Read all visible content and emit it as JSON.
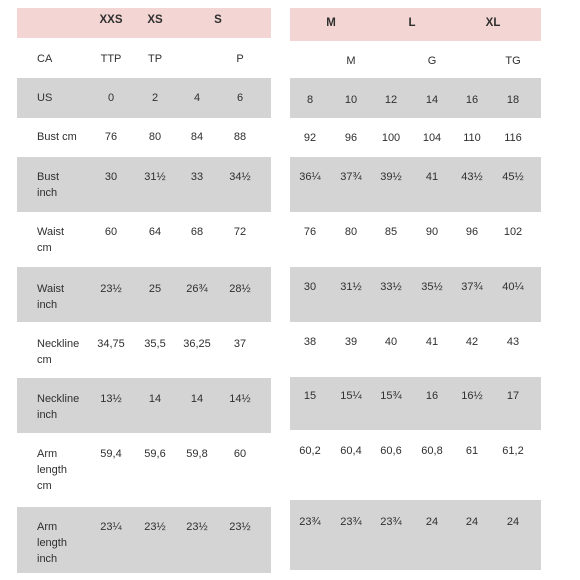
{
  "colors": {
    "header_bg": "#f3d6d3",
    "band_bg": "#d4d4d4",
    "text": "#2f2f2f"
  },
  "left": {
    "sizes": [
      "XXS",
      "XS",
      "S"
    ],
    "ca_label": "CA",
    "ca": [
      "TTP",
      "TP",
      "P"
    ],
    "rows": [
      {
        "label": [
          "US"
        ],
        "values": [
          "0",
          "2",
          "4",
          "6"
        ]
      },
      {
        "label": [
          "Bust cm"
        ],
        "values": [
          "76",
          "80",
          "84",
          "88"
        ]
      },
      {
        "label": [
          "Bust",
          "inch"
        ],
        "values": [
          "30",
          "31½",
          "33",
          "34½"
        ]
      },
      {
        "label": [
          "Waist",
          "cm"
        ],
        "values": [
          "60",
          "64",
          "68",
          "72"
        ]
      },
      {
        "label": [
          "Waist",
          "inch"
        ],
        "values": [
          "23½",
          "25",
          "26¾",
          "28½"
        ]
      },
      {
        "label": [
          "Neckline",
          "cm"
        ],
        "values": [
          "34,75",
          "35,5",
          "36,25",
          "37"
        ]
      },
      {
        "label": [
          "Neckline",
          "inch"
        ],
        "values": [
          "13½",
          "14",
          "14",
          "14½"
        ]
      },
      {
        "label": [
          "Arm",
          "length",
          "cm"
        ],
        "values": [
          "59,4",
          "59,6",
          "59,8",
          "60"
        ]
      },
      {
        "label": [
          "Arm",
          "length",
          "inch"
        ],
        "values": [
          "23¼",
          "23½",
          "23½",
          "23½"
        ]
      }
    ]
  },
  "right": {
    "sizes": [
      "M",
      "L",
      "XL"
    ],
    "ca": [
      "M",
      "G",
      "TG"
    ],
    "rows": [
      [
        "8",
        "10",
        "12",
        "14",
        "16",
        "18"
      ],
      [
        "92",
        "96",
        "100",
        "104",
        "110",
        "116"
      ],
      [
        "36¼",
        "37¾",
        "39½",
        "41",
        "43½",
        "45½"
      ],
      [
        "76",
        "80",
        "85",
        "90",
        "96",
        "102"
      ],
      [
        "30",
        "31½",
        "33½",
        "35½",
        "37¾",
        "40¼"
      ],
      [
        "38",
        "39",
        "40",
        "41",
        "42",
        "43"
      ],
      [
        "15",
        "15¼",
        "15¾",
        "16",
        "16½",
        "17"
      ],
      [
        "60,2",
        "60,4",
        "60,6",
        "60,8",
        "61",
        "61,2"
      ],
      [
        "23¾",
        "23¾",
        "23¾",
        "24",
        "24",
        "24"
      ]
    ]
  }
}
